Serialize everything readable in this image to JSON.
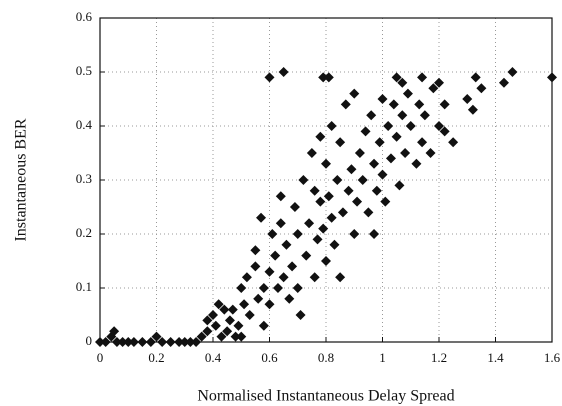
{
  "chart_data": {
    "type": "scatter",
    "xlabel": "Normalised Instantaneous Delay Spread",
    "ylabel": "Instantaneous BER",
    "color": "#111111",
    "grid": true,
    "xlim": [
      0,
      1.6
    ],
    "xticks": [
      0,
      0.2,
      0.4,
      0.6,
      0.8,
      1,
      1.2,
      1.4,
      1.6
    ],
    "ylim": [
      0,
      0.6
    ],
    "yticks": [
      0,
      0.1,
      0.2,
      0.3,
      0.4,
      0.5,
      0.6
    ],
    "x": [
      0,
      0.02,
      0.04,
      0.05,
      0.06,
      0.08,
      0.1,
      0.12,
      0.15,
      0.18,
      0.2,
      0.22,
      0.25,
      0.28,
      0.3,
      0.32,
      0.34,
      0.36,
      0.38,
      0.38,
      0.4,
      0.41,
      0.42,
      0.43,
      0.44,
      0.45,
      0.46,
      0.47,
      0.48,
      0.49,
      0.5,
      0.5,
      0.51,
      0.52,
      0.53,
      0.55,
      0.55,
      0.56,
      0.57,
      0.58,
      0.58,
      0.6,
      0.6,
      0.61,
      0.62,
      0.63,
      0.64,
      0.64,
      0.65,
      0.66,
      0.67,
      0.68,
      0.69,
      0.7,
      0.7,
      0.71,
      0.72,
      0.73,
      0.74,
      0.75,
      0.76,
      0.76,
      0.77,
      0.78,
      0.78,
      0.79,
      0.8,
      0.8,
      0.81,
      0.82,
      0.82,
      0.83,
      0.84,
      0.85,
      0.85,
      0.86,
      0.87,
      0.88,
      0.89,
      0.9,
      0.9,
      0.91,
      0.92,
      0.93,
      0.94,
      0.95,
      0.96,
      0.97,
      0.97,
      0.98,
      0.99,
      1.0,
      1.0,
      1.01,
      1.02,
      1.03,
      1.04,
      1.05,
      1.06,
      1.07,
      1.08,
      1.09,
      1.1,
      1.12,
      1.13,
      1.14,
      1.15,
      1.17,
      1.18,
      1.2,
      1.22,
      1.25,
      1.3,
      1.32,
      1.35,
      1.22,
      0.6,
      0.65,
      0.79,
      0.81,
      1.05,
      1.07,
      1.14,
      1.2,
      1.33,
      1.46,
      1.6,
      1.43
    ],
    "values": [
      0,
      0,
      0.01,
      0.02,
      0,
      0,
      0,
      0,
      0,
      0,
      0.01,
      0,
      0,
      0,
      0,
      0,
      0,
      0.01,
      0.02,
      0.04,
      0.05,
      0.03,
      0.07,
      0.01,
      0.06,
      0.02,
      0.04,
      0.06,
      0.01,
      0.03,
      0.1,
      0.01,
      0.07,
      0.12,
      0.05,
      0.14,
      0.17,
      0.08,
      0.23,
      0.1,
      0.03,
      0.13,
      0.07,
      0.2,
      0.16,
      0.1,
      0.22,
      0.27,
      0.12,
      0.18,
      0.08,
      0.14,
      0.25,
      0.1,
      0.2,
      0.05,
      0.3,
      0.16,
      0.22,
      0.35,
      0.12,
      0.28,
      0.19,
      0.26,
      0.38,
      0.21,
      0.15,
      0.33,
      0.27,
      0.23,
      0.4,
      0.18,
      0.3,
      0.12,
      0.37,
      0.24,
      0.44,
      0.28,
      0.32,
      0.2,
      0.46,
      0.26,
      0.35,
      0.3,
      0.39,
      0.24,
      0.42,
      0.33,
      0.2,
      0.28,
      0.37,
      0.31,
      0.45,
      0.26,
      0.4,
      0.34,
      0.44,
      0.38,
      0.29,
      0.42,
      0.35,
      0.46,
      0.4,
      0.33,
      0.44,
      0.37,
      0.42,
      0.35,
      0.47,
      0.4,
      0.44,
      0.37,
      0.45,
      0.43,
      0.47,
      0.39,
      0.49,
      0.5,
      0.49,
      0.49,
      0.49,
      0.48,
      0.49,
      0.48,
      0.49,
      0.5,
      0.49,
      0.48
    ]
  }
}
